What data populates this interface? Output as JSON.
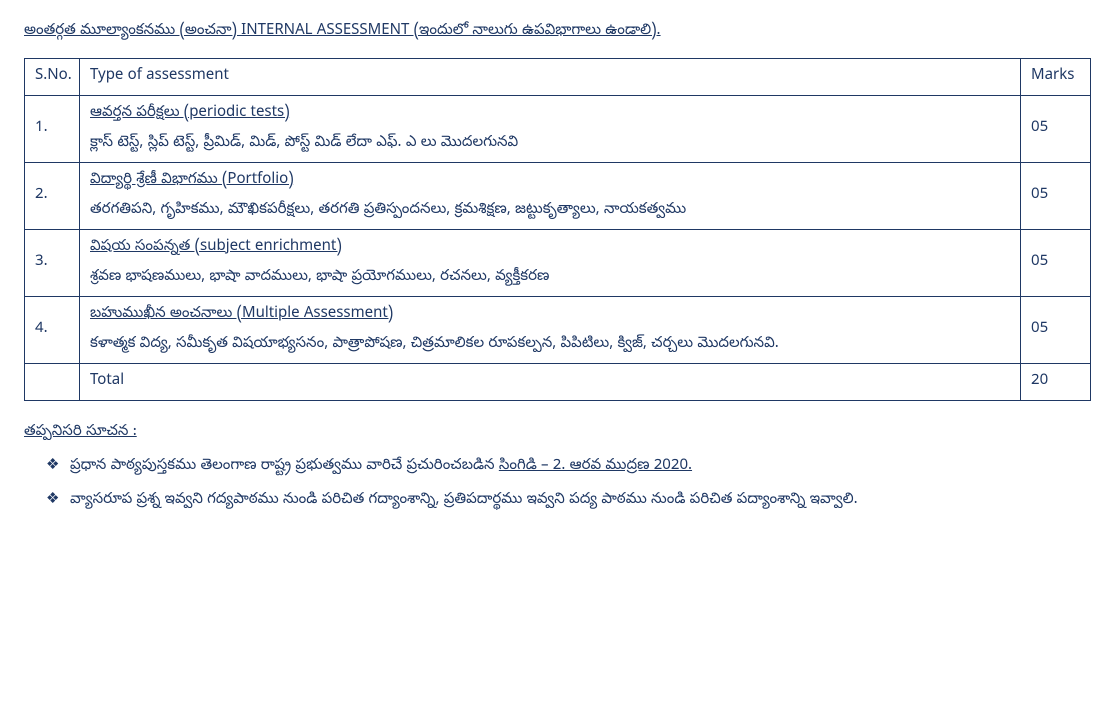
{
  "heading": "అంతర్గత మూల్యాంకనము (అంచనా) INTERNAL ASSESSMENT (ఇందులో నాలుగు ఉపవిభాగాలు ఉండాలి).",
  "table": {
    "headers": {
      "sno": "S.No.",
      "type": "Type of assessment",
      "marks": "Marks"
    },
    "rows": [
      {
        "sno": "1.",
        "title": "ఆవర్తన పరీక్షలు (periodic tests)",
        "desc": "క్లాస్ టెస్ట్,  స్లిప్ టెస్ట్,  ప్రీమిడ్, మిడ్, పోస్ట్ మిడ్ లేదా ఎఫ్. ఎ లు మొదలగునవి",
        "marks": "05"
      },
      {
        "sno": "2.",
        "title": "విద్యార్థి శ్రేణీ విభాగము (Portfolio)",
        "desc": "తరగతిపని, గృహికము, మౌఖికపరీక్షలు, తరగతి ప్రతిస్పందనలు, క్రమశిక్షణ, జట్టుకృత్యాలు, నాయకత్వము",
        "marks": "05"
      },
      {
        "sno": "3.",
        "title": "విషయ సంపన్నత (subject enrichment)",
        "desc": "శ్రవణ భాషణములు,  భాషా వాదములు,  భాషా ప్రయోగములు,  రచనలు,  వ్యక్తీకరణ",
        "marks": "05"
      },
      {
        "sno": "4.",
        "title": "బహుముఖీన అంచనాలు (Multiple Assessment)",
        "desc": "కళాత్మక విద్య,  సమీకృత విషయాభ్యసనం, పాత్రాపోషణ,  చిత్రమాలికల రూపకల్పన, పిపిటిలు, క్విజ్, చర్చలు మొదలగునవి.",
        "marks": "05"
      }
    ],
    "total_label": "Total",
    "total_marks": "20"
  },
  "note_heading": "తప్పనిసరి సూచన :",
  "notes": [
    {
      "pre": "ప్రధాన పాఠ్యపుస్తకము తెలంగాణ రాష్ట్ర ప్రభుత్వము వారిచే ప్రచురించబడిన ",
      "u": "సింగిడి – 2. ఆరవ ముద్రణ 2020."
    },
    {
      "pre": "వ్యాసరూప ప్రశ్న ఇవ్వని గద్యపాఠము నుండి పరిచిత గద్యాంశాన్ని, ప్రతిపదార్థము ఇవ్వని పద్య పాఠము నుండి పరిచిత పద్యాంశాన్ని ఇవ్వాలి.",
      "u": ""
    }
  ]
}
